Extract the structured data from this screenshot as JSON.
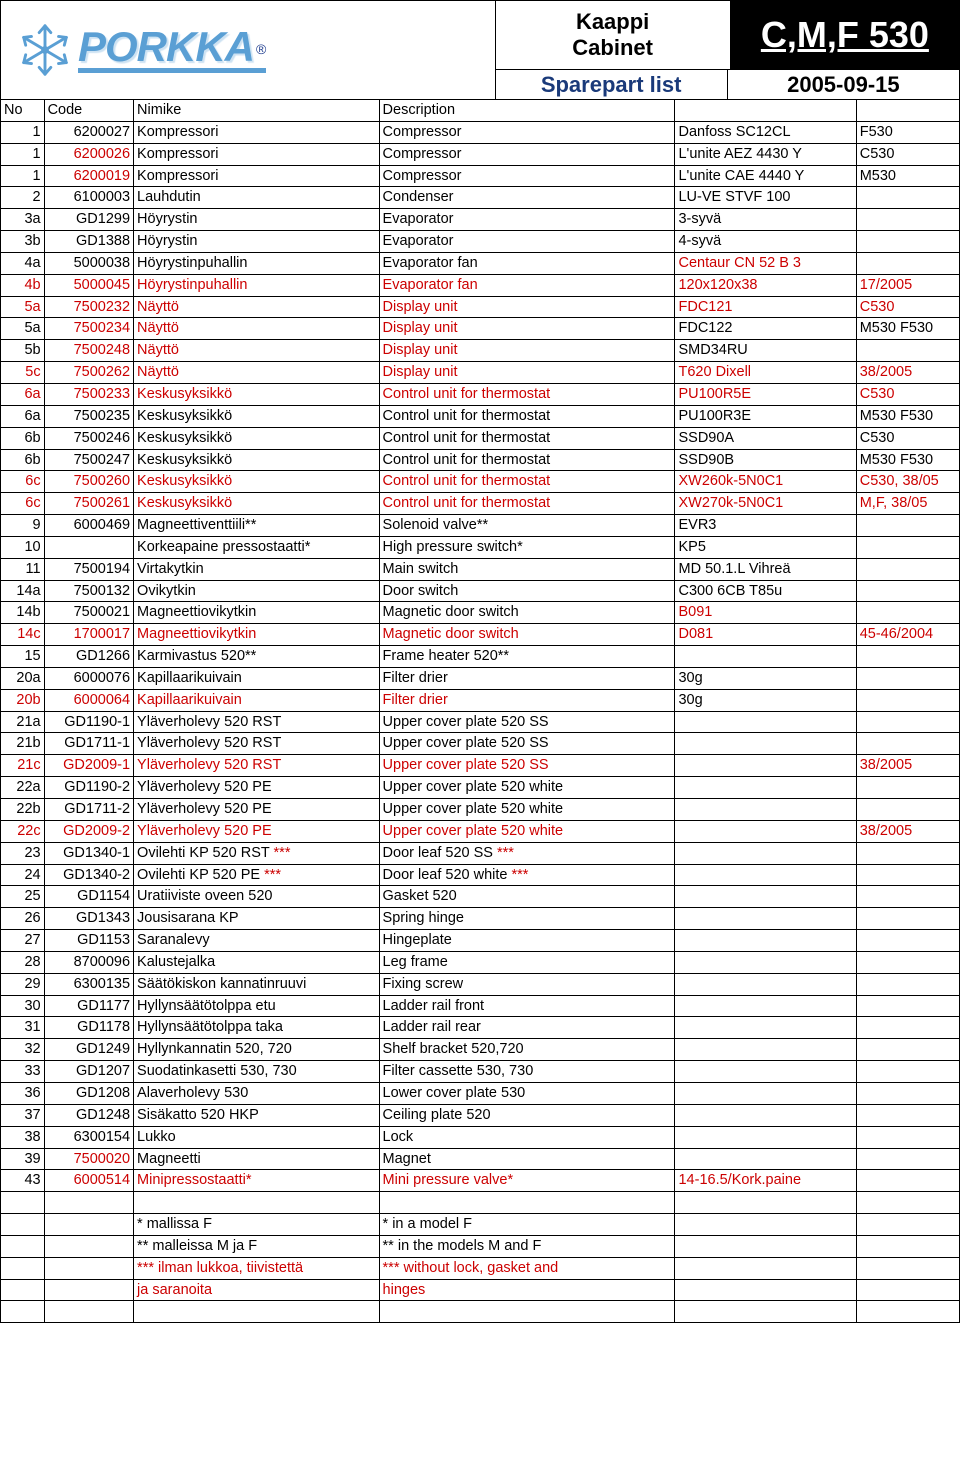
{
  "header": {
    "brand": "PORKKA",
    "title_fi": "Kaappi",
    "title_en": "Cabinet",
    "model": "C,M,F 530",
    "doc_type": "Sparepart list",
    "date": "2005-09-15"
  },
  "columns": {
    "no": "No",
    "code": "Code",
    "nimike": "Nimike",
    "description": "Description",
    "detail": "",
    "model": ""
  },
  "rows": [
    {
      "no": "1",
      "code": "6200027",
      "nimike": "Kompressori",
      "desc": "Compressor",
      "det": "Danfoss SC12CL",
      "model": "F530"
    },
    {
      "no": "1",
      "code": "6200026",
      "nimike": "Kompressori",
      "desc": "Compressor",
      "det": "L'unite AEZ 4430 Y",
      "model": "C530",
      "code_red": true
    },
    {
      "no": "1",
      "code": "6200019",
      "nimike": "Kompressori",
      "desc": "Compressor",
      "det": "L'unite CAE 4440 Y",
      "model": "M530",
      "code_red": true
    },
    {
      "no": "2",
      "code": "6100003",
      "nimike": "Lauhdutin",
      "desc": "Condenser",
      "det": "LU-VE STVF 100",
      "model": ""
    },
    {
      "no": "3a",
      "code": "GD1299",
      "nimike": "Höyrystin",
      "desc": "Evaporator",
      "det": "3-syvä",
      "model": ""
    },
    {
      "no": "3b",
      "code": "GD1388",
      "nimike": "Höyrystin",
      "desc": "Evaporator",
      "det": "4-syvä",
      "model": ""
    },
    {
      "no": "4a",
      "code": "5000038",
      "nimike": "Höyrystinpuhallin",
      "desc": "Evaporator fan",
      "det": "Centaur CN 52 B 3",
      "model": "",
      "det_red": true
    },
    {
      "no": "4b",
      "code": "5000045",
      "nimike": "Höyrystinpuhallin",
      "desc": "Evaporator fan",
      "det": "120x120x38",
      "model": "17/2005",
      "all_red": true
    },
    {
      "no": "5a",
      "code": "7500232",
      "nimike": "Näyttö",
      "desc": "Display unit",
      "det": "FDC121",
      "model": "C530",
      "no_red": true,
      "code_red": true,
      "nimike_red": true,
      "desc_red": true,
      "det_red": true,
      "model_red": true
    },
    {
      "no": "5a",
      "code": "7500234",
      "nimike": "Näyttö",
      "desc": "Display unit",
      "det": "FDC122",
      "model": "M530 F530",
      "code_red": true,
      "nimike_red": true,
      "desc_red": true
    },
    {
      "no": "5b",
      "code": "7500248",
      "nimike": "Näyttö",
      "desc": "Display unit",
      "det": "SMD34RU",
      "model": "",
      "code_red": true,
      "nimike_red": true,
      "desc_red": true
    },
    {
      "no": "5c",
      "code": "7500262",
      "nimike": "Näyttö",
      "desc": "Display unit",
      "det": "T620 Dixell",
      "model": "38/2005",
      "all_red": true
    },
    {
      "no": "6a",
      "code": "7500233",
      "nimike": "Keskusyksikkö",
      "desc": "Control unit for thermostat",
      "det": "PU100R5E",
      "model": "C530",
      "all_red": true
    },
    {
      "no": "6a",
      "code": "7500235",
      "nimike": "Keskusyksikkö",
      "desc": "Control unit for thermostat",
      "det": "PU100R3E",
      "model": "M530 F530"
    },
    {
      "no": "6b",
      "code": "7500246",
      "nimike": "Keskusyksikkö",
      "desc": "Control unit for thermostat",
      "det": "SSD90A",
      "model": "C530"
    },
    {
      "no": "6b",
      "code": "7500247",
      "nimike": "Keskusyksikkö",
      "desc": "Control unit for thermostat",
      "det": "SSD90B",
      "model": "M530 F530"
    },
    {
      "no": "6c",
      "code": "7500260",
      "nimike": "Keskusyksikkö",
      "desc": "Control unit for thermostat",
      "det": "XW260k-5N0C1",
      "model": "C530, 38/05",
      "all_red": true
    },
    {
      "no": "6c",
      "code": "7500261",
      "nimike": "Keskusyksikkö",
      "desc": "Control unit for thermostat",
      "det": "XW270k-5N0C1",
      "model": "M,F, 38/05",
      "all_red": true
    },
    {
      "no": "9",
      "code": "6000469",
      "nimike": "Magneettiventtiili**",
      "desc": "Solenoid valve**",
      "det": "EVR3",
      "model": ""
    },
    {
      "no": "10",
      "code": "",
      "nimike": "Korkeapaine pressostaatti*",
      "desc": "High pressure switch*",
      "det": "KP5",
      "model": ""
    },
    {
      "no": "11",
      "code": "7500194",
      "nimike": "Virtakytkin",
      "desc": "Main switch",
      "det": "MD 50.1.L Vihreä",
      "model": ""
    },
    {
      "no": "14a",
      "code": "7500132",
      "nimike": "Ovikytkin",
      "desc": "Door switch",
      "det": "C300 6CB T85u",
      "model": ""
    },
    {
      "no": "14b",
      "code": "7500021",
      "nimike": "Magneettiovikytkin",
      "desc": "Magnetic door switch",
      "det": "B091",
      "model": "",
      "det_red": true
    },
    {
      "no": "14c",
      "code": "1700017",
      "nimike": "Magneettiovikytkin",
      "desc": "Magnetic door switch",
      "det": "D081",
      "model": "45-46/2004",
      "all_red": true
    },
    {
      "no": "15",
      "code": "GD1266",
      "nimike": "Karmivastus 520**",
      "desc": "Frame heater 520**",
      "det": "",
      "model": ""
    },
    {
      "no": "20a",
      "code": "6000076",
      "nimike": "Kapillaarikuivain",
      "desc": "Filter drier",
      "det": "30g",
      "model": ""
    },
    {
      "no": "20b",
      "code": "6000064",
      "nimike": "Kapillaarikuivain",
      "desc": "Filter drier",
      "det": "30g",
      "model": "",
      "no_red": true,
      "code_red": true,
      "nimike_red": true,
      "desc_red": true
    },
    {
      "no": "21a",
      "code": "GD1190-1",
      "nimike": "Yläverholevy 520 RST",
      "desc": "Upper cover plate 520 SS",
      "det": "",
      "model": ""
    },
    {
      "no": "21b",
      "code": "GD1711-1",
      "nimike": "Yläverholevy 520 RST",
      "desc": "Upper cover plate 520 SS",
      "det": "",
      "model": ""
    },
    {
      "no": "21c",
      "code": "GD2009-1",
      "nimike": "Yläverholevy 520 RST",
      "desc": "Upper cover plate 520 SS",
      "det": "",
      "model": "38/2005",
      "all_red": true
    },
    {
      "no": "22a",
      "code": "GD1190-2",
      "nimike": "Yläverholevy 520 PE",
      "desc": "Upper cover plate 520 white",
      "det": "",
      "model": ""
    },
    {
      "no": "22b",
      "code": "GD1711-2",
      "nimike": "Yläverholevy 520 PE",
      "desc": "Upper cover plate 520 white",
      "det": "",
      "model": ""
    },
    {
      "no": "22c",
      "code": "GD2009-2",
      "nimike": "Yläverholevy 520 PE",
      "desc": "Upper cover plate 520 white",
      "det": "",
      "model": "38/2005",
      "all_red": true
    },
    {
      "no": "23",
      "code": "GD1340-1",
      "nimike": "Ovilehti KP 520 RST ***",
      "desc": "Door leaf 520 SS ***",
      "det": "",
      "model": "",
      "nimike_red_suffix": true,
      "desc_red_suffix": true
    },
    {
      "no": "24",
      "code": "GD1340-2",
      "nimike": "Ovilehti KP 520 PE ***",
      "desc": "Door leaf 520 white ***",
      "det": "",
      "model": "",
      "nimike_red_suffix": true,
      "desc_red_suffix": true
    },
    {
      "no": "25",
      "code": "GD1154",
      "nimike": "Uratiiviste oveen 520",
      "desc": "Gasket 520",
      "det": "",
      "model": ""
    },
    {
      "no": "26",
      "code": "GD1343",
      "nimike": "Jousisarana KP",
      "desc": "Spring hinge",
      "det": "",
      "model": ""
    },
    {
      "no": "27",
      "code": "GD1153",
      "nimike": "Saranalevy",
      "desc": "Hingeplate",
      "det": "",
      "model": ""
    },
    {
      "no": "28",
      "code": "8700096",
      "nimike": "Kalustejalka",
      "desc": "Leg frame",
      "det": "",
      "model": ""
    },
    {
      "no": "29",
      "code": "6300135",
      "nimike": "Säätökiskon kannatinruuvi",
      "desc": "Fixing screw",
      "det": "",
      "model": ""
    },
    {
      "no": "30",
      "code": "GD1177",
      "nimike": "Hyllynsäätötolppa etu",
      "desc": "Ladder rail front",
      "det": "",
      "model": ""
    },
    {
      "no": "31",
      "code": "GD1178",
      "nimike": "Hyllynsäätötolppa taka",
      "desc": "Ladder rail rear",
      "det": "",
      "model": ""
    },
    {
      "no": "32",
      "code": "GD1249",
      "nimike": "Hyllynkannatin 520, 720",
      "desc": "Shelf bracket 520,720",
      "det": "",
      "model": ""
    },
    {
      "no": "33",
      "code": "GD1207",
      "nimike": "Suodatinkasetti 530, 730",
      "desc": "Filter cassette 530, 730",
      "det": "",
      "model": ""
    },
    {
      "no": "36",
      "code": "GD1208",
      "nimike": "Alaverholevy 530",
      "desc": "Lower cover plate 530",
      "det": "",
      "model": ""
    },
    {
      "no": "37",
      "code": "GD1248",
      "nimike": "Sisäkatto 520 HKP",
      "desc": "Ceiling plate 520",
      "det": "",
      "model": ""
    },
    {
      "no": "38",
      "code": "6300154",
      "nimike": "Lukko",
      "desc": "Lock",
      "det": "",
      "model": ""
    },
    {
      "no": "39",
      "code": "7500020",
      "nimike": "Magneetti",
      "desc": "Magnet",
      "det": "",
      "model": "",
      "code_red": true
    },
    {
      "no": "43",
      "code": "6000514",
      "nimike": "Minipressostaatti*",
      "desc": "Mini pressure valve*",
      "det": "14-16.5/Kork.paine",
      "model": "",
      "code_red": true,
      "nimike_red": true,
      "desc_red": true,
      "det_red": true
    }
  ],
  "notes": [
    {
      "nimike": "* mallissa F",
      "desc": "* in a model F"
    },
    {
      "nimike": "** malleissa M ja F",
      "desc": "** in the models M and F"
    },
    {
      "nimike": "*** ilman lukkoa, tiivistettä",
      "desc": "*** without lock, gasket and",
      "red": true
    },
    {
      "nimike": "    ja saranoita",
      "desc": "     hinges",
      "red": true
    }
  ]
}
